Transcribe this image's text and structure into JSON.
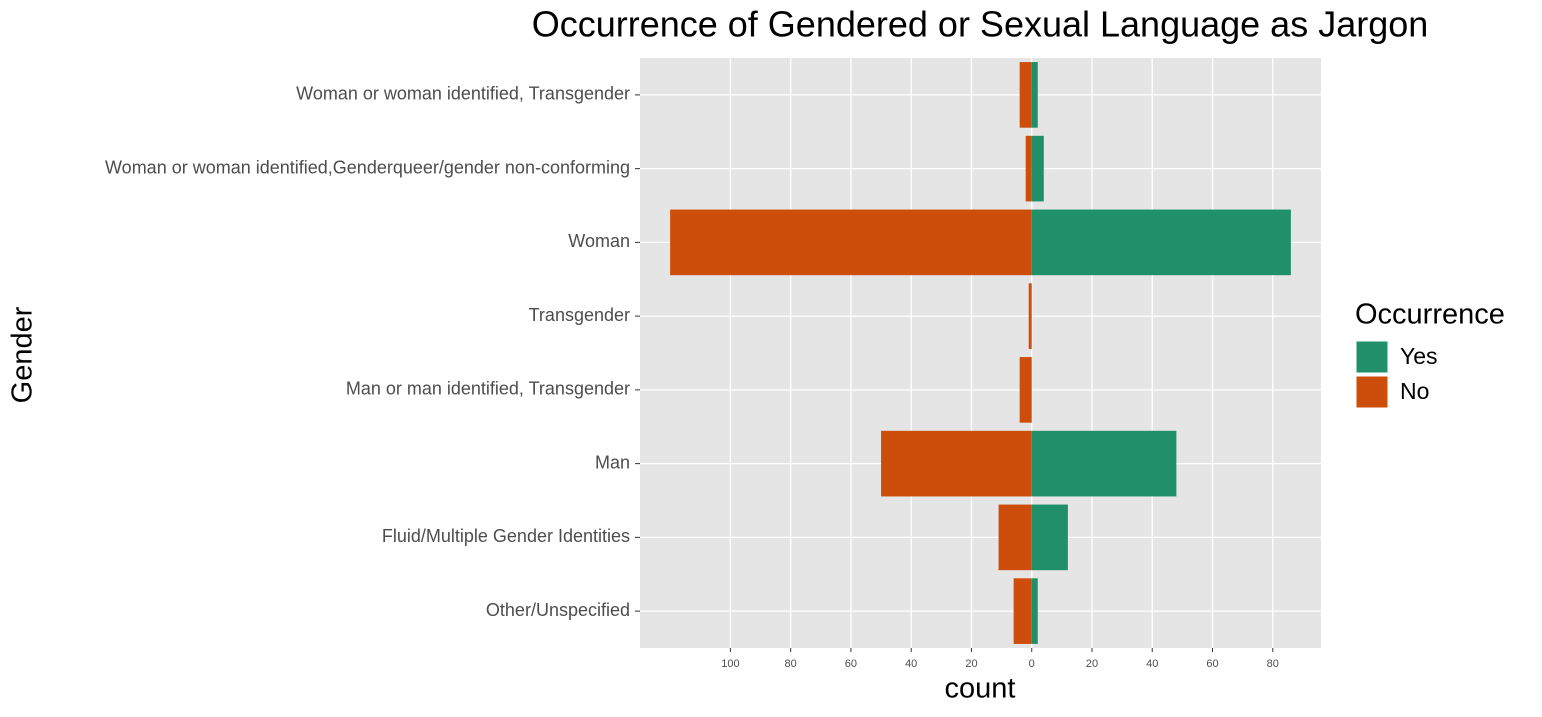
{
  "chart_data": {
    "type": "diverging-bar",
    "title": "Occurrence of Gendered or Sexual Language as Jargon",
    "x_label": "count",
    "y_label": "Gender",
    "legend_title": "Occurrence",
    "categories": [
      "Woman or woman identified, Transgender",
      "Woman or woman identified,Genderqueer/gender non-conforming",
      "Woman",
      "Transgender",
      "Man or man identified, Transgender",
      "Man",
      "Fluid/Multiple Gender Identities",
      "Other/Unspecified"
    ],
    "series": [
      {
        "name": "Yes",
        "color": "#1f9069",
        "values": [
          2,
          4,
          86,
          0,
          0,
          48,
          12,
          2
        ]
      },
      {
        "name": "No",
        "color": "#cd4d0a",
        "values": [
          -4,
          -2,
          -120,
          -1,
          -4,
          -50,
          -11,
          -6
        ]
      }
    ],
    "xlim": [
      -130,
      96
    ],
    "xticks": [
      {
        "value": -100,
        "label": "100"
      },
      {
        "value": -80,
        "label": "80"
      },
      {
        "value": -60,
        "label": "60"
      },
      {
        "value": -40,
        "label": "40"
      },
      {
        "value": -20,
        "label": "20"
      },
      0,
      20,
      40,
      60,
      80
    ],
    "grid": true,
    "legend_position": "right"
  }
}
